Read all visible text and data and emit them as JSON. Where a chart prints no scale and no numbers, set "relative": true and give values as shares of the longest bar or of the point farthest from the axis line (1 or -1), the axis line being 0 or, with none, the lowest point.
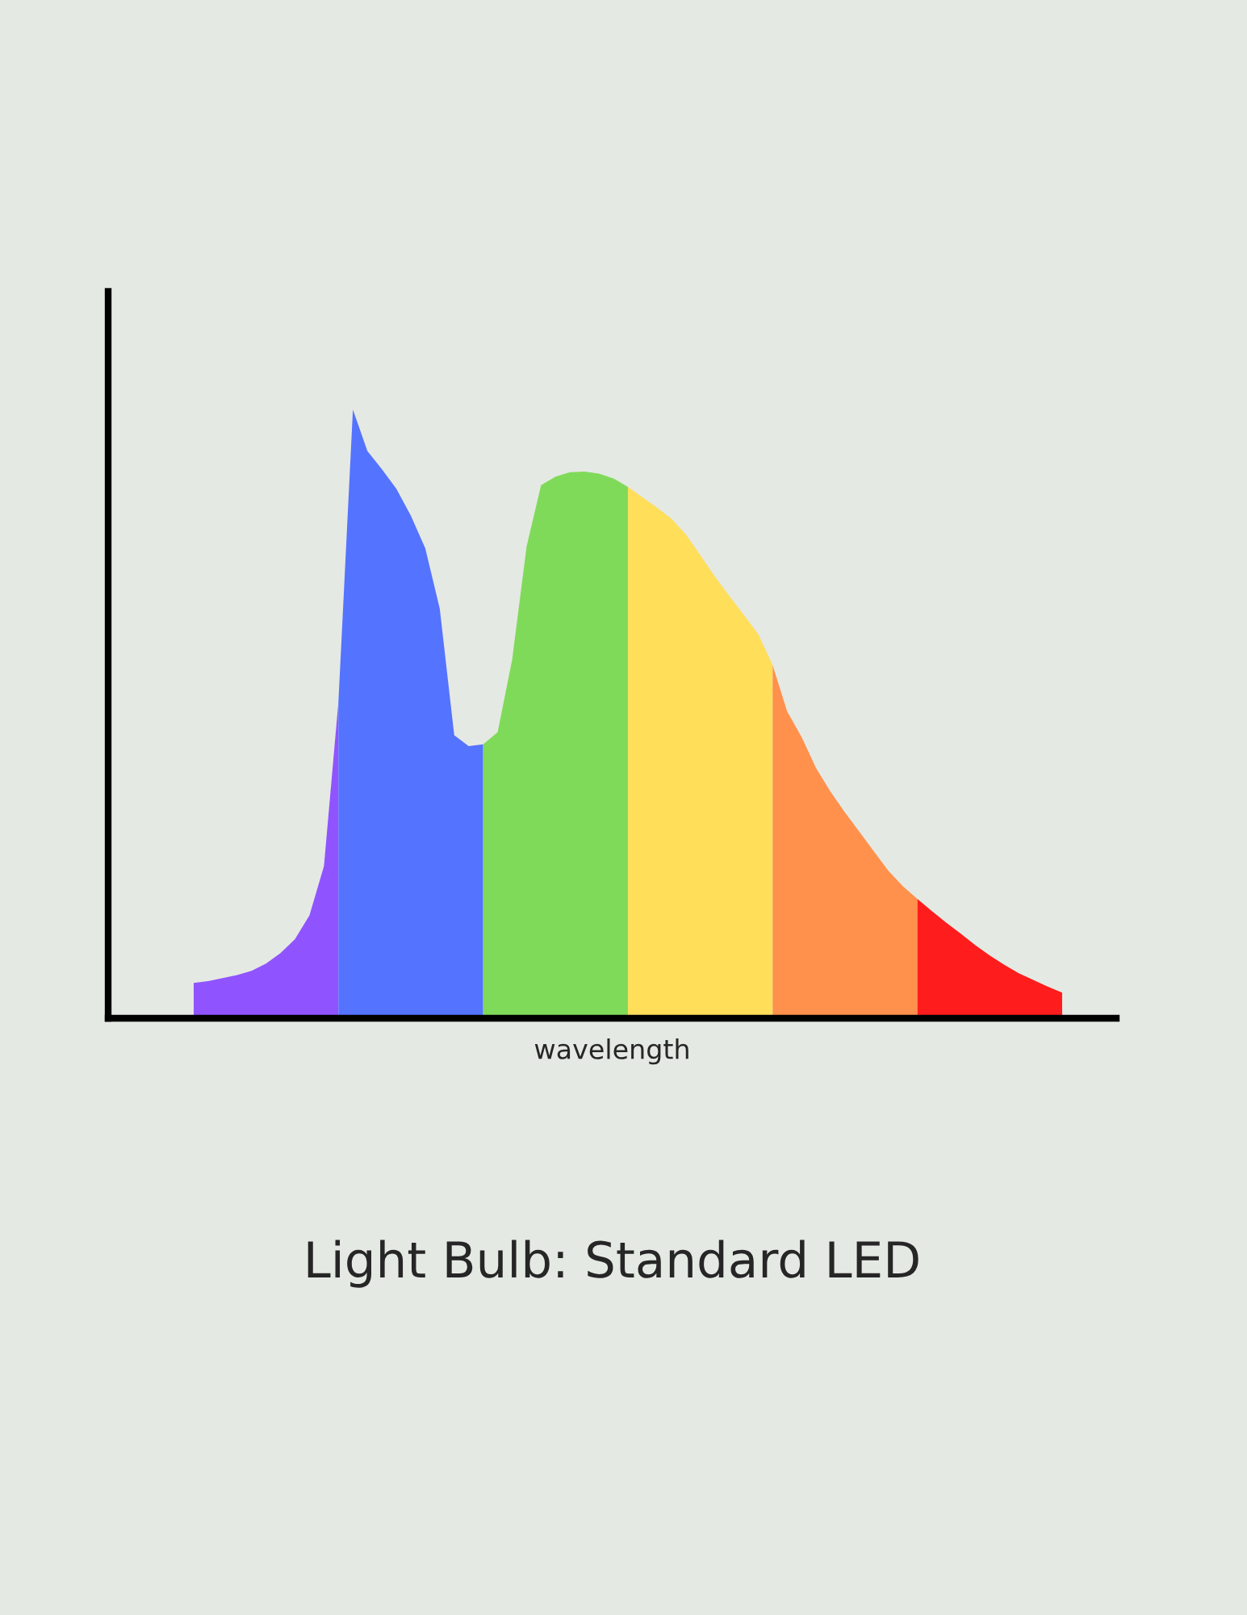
{
  "chart_data": {
    "type": "area",
    "title": "Light Bulb: Standard LED",
    "xlabel": "wavelength",
    "relative": true,
    "tick_labels": false,
    "grid": false,
    "legend": false,
    "categories": [
      null,
      null,
      null,
      null,
      null,
      null,
      null,
      null,
      null,
      null,
      null,
      null,
      null,
      null,
      null,
      null,
      null,
      null,
      null,
      null,
      null,
      null,
      null,
      null,
      null,
      null,
      null,
      null,
      null,
      null,
      null,
      null,
      null,
      null,
      null,
      null,
      null,
      null,
      null,
      null,
      null,
      null,
      null,
      null,
      null,
      null,
      null,
      null,
      null,
      null,
      null,
      null,
      null,
      null,
      null,
      null,
      null,
      null,
      null,
      null,
      null
    ],
    "series": [
      {
        "color": "#8f54ff",
        "values": [
          0.058,
          0.061,
          0.066,
          0.071,
          0.078,
          0.09,
          0.107,
          0.13,
          0.169,
          0.25,
          0.52,
          null,
          null,
          null,
          null,
          null,
          null,
          null,
          null,
          null,
          null,
          null,
          null,
          null,
          null,
          null,
          null,
          null,
          null,
          null,
          null,
          null,
          null,
          null,
          null,
          null,
          null,
          null,
          null,
          null,
          null,
          null,
          null,
          null,
          null,
          null,
          null,
          null,
          null,
          null,
          null,
          null,
          null,
          null,
          null,
          null,
          null,
          null,
          null,
          null,
          null
        ]
      },
      {
        "color": "#5473ff",
        "values": [
          null,
          null,
          null,
          null,
          null,
          null,
          null,
          null,
          null,
          null,
          0.52,
          1,
          0.932,
          0.902,
          0.87,
          0.826,
          0.772,
          0.673,
          0.465,
          0.447,
          0.45,
          null,
          null,
          null,
          null,
          null,
          null,
          null,
          null,
          null,
          null,
          null,
          null,
          null,
          null,
          null,
          null,
          null,
          null,
          null,
          null,
          null,
          null,
          null,
          null,
          null,
          null,
          null,
          null,
          null,
          null,
          null,
          null,
          null,
          null,
          null,
          null,
          null,
          null,
          null,
          null
        ]
      },
      {
        "color": "#80da5a",
        "values": [
          null,
          null,
          null,
          null,
          null,
          null,
          null,
          null,
          null,
          null,
          null,
          null,
          null,
          null,
          null,
          null,
          null,
          null,
          null,
          null,
          0.45,
          0.47,
          0.589,
          0.775,
          0.876,
          0.89,
          0.897,
          0.898,
          0.895,
          0.887,
          0.873,
          null,
          null,
          null,
          null,
          null,
          null,
          null,
          null,
          null,
          null,
          null,
          null,
          null,
          null,
          null,
          null,
          null,
          null,
          null,
          null,
          null,
          null,
          null,
          null,
          null,
          null,
          null,
          null,
          null,
          null
        ]
      },
      {
        "color": "#ffde5a",
        "values": [
          null,
          null,
          null,
          null,
          null,
          null,
          null,
          null,
          null,
          null,
          null,
          null,
          null,
          null,
          null,
          null,
          null,
          null,
          null,
          null,
          null,
          null,
          null,
          null,
          null,
          null,
          null,
          null,
          null,
          null,
          0.873,
          0.856,
          0.839,
          0.821,
          0.795,
          0.761,
          0.726,
          0.694,
          0.663,
          0.631,
          0.58,
          null,
          null,
          null,
          null,
          null,
          null,
          null,
          null,
          null,
          null,
          null,
          null,
          null,
          null,
          null,
          null,
          null,
          null,
          null,
          null
        ]
      },
      {
        "color": "#ff914d",
        "values": [
          null,
          null,
          null,
          null,
          null,
          null,
          null,
          null,
          null,
          null,
          null,
          null,
          null,
          null,
          null,
          null,
          null,
          null,
          null,
          null,
          null,
          null,
          null,
          null,
          null,
          null,
          null,
          null,
          null,
          null,
          null,
          null,
          null,
          null,
          null,
          null,
          null,
          null,
          null,
          null,
          0.58,
          0.504,
          0.462,
          0.411,
          0.372,
          0.338,
          0.306,
          0.274,
          0.242,
          0.217,
          0.196,
          null,
          null,
          null,
          null,
          null,
          null,
          null,
          null,
          null,
          null
        ]
      },
      {
        "color": "#ff1c1c",
        "values": [
          null,
          null,
          null,
          null,
          null,
          null,
          null,
          null,
          null,
          null,
          null,
          null,
          null,
          null,
          null,
          null,
          null,
          null,
          null,
          null,
          null,
          null,
          null,
          null,
          null,
          null,
          null,
          null,
          null,
          null,
          null,
          null,
          null,
          null,
          null,
          null,
          null,
          null,
          null,
          null,
          null,
          null,
          null,
          null,
          null,
          null,
          null,
          null,
          null,
          null,
          0.196,
          0.176,
          0.157,
          0.139,
          0.12,
          0.103,
          0.088,
          0.074,
          0.063,
          0.052,
          0.042
        ]
      }
    ]
  }
}
